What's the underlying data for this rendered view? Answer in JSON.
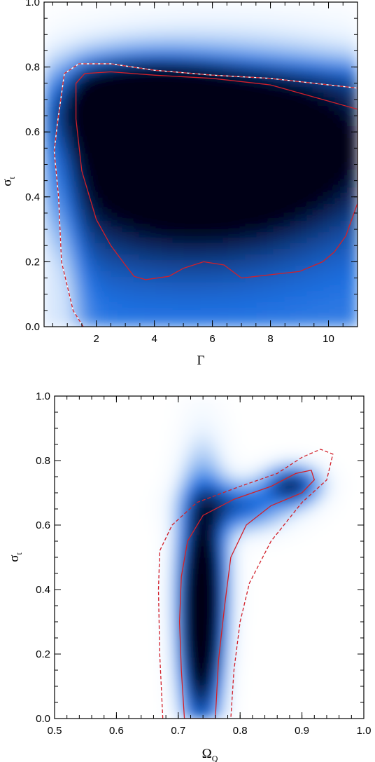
{
  "chart_data": [
    {
      "type": "heatmap",
      "xlabel": "Γ",
      "ylabel": "σ_t",
      "ylabel_main": "σ",
      "ylabel_sub": "t",
      "xlim": [
        0.2,
        11.0
      ],
      "ylim": [
        0.0,
        1.0
      ],
      "xticks": [
        2,
        4,
        6,
        8,
        10
      ],
      "yticks": [
        0.0,
        0.2,
        0.4,
        0.6,
        0.8,
        1.0
      ],
      "xtick_labels": [
        "2",
        "4",
        "6",
        "8",
        "10"
      ],
      "ytick_labels": [
        "0.0",
        "0.2",
        "0.4",
        "0.6",
        "0.8",
        "1.0"
      ],
      "colors": {
        "background": "#ffffff",
        "low": "#e9f3ff",
        "mid": "#1f6fe0",
        "high": "#000018",
        "contour": "#d2202a",
        "contour_outline": "#ffffff"
      },
      "contours": [
        {
          "style": "solid",
          "points": [
            [
              1.6,
              0.78
            ],
            [
              2.5,
              0.785
            ],
            [
              4,
              0.775
            ],
            [
              6,
              0.765
            ],
            [
              8,
              0.745
            ],
            [
              10,
              0.695
            ],
            [
              11,
              0.67
            ],
            [
              11,
              0.38
            ],
            [
              10.6,
              0.28
            ],
            [
              10.2,
              0.23
            ],
            [
              9.8,
              0.2
            ],
            [
              9,
              0.17
            ],
            [
              8,
              0.16
            ],
            [
              7,
              0.15
            ],
            [
              6.4,
              0.19
            ],
            [
              5.7,
              0.2
            ],
            [
              5,
              0.18
            ],
            [
              4.5,
              0.155
            ],
            [
              3.7,
              0.145
            ],
            [
              3.3,
              0.155
            ],
            [
              3,
              0.19
            ],
            [
              2.5,
              0.25
            ],
            [
              2,
              0.33
            ],
            [
              1.5,
              0.48
            ],
            [
              1.3,
              0.64
            ],
            [
              1.3,
              0.75
            ]
          ]
        },
        {
          "style": "dashed",
          "points": [
            [
              1.55,
              0.0
            ],
            [
              1.2,
              0.05
            ],
            [
              0.8,
              0.2
            ],
            [
              0.7,
              0.4
            ],
            [
              0.55,
              0.54
            ],
            [
              0.65,
              0.62
            ],
            [
              0.9,
              0.78
            ],
            [
              1.4,
              0.81
            ],
            [
              2.5,
              0.81
            ],
            [
              4,
              0.79
            ],
            [
              6,
              0.775
            ],
            [
              8,
              0.765
            ],
            [
              10,
              0.745
            ],
            [
              11,
              0.735
            ]
          ]
        }
      ],
      "density_peaks": [
        {
          "x": 3.5,
          "y": 0.68,
          "sx": 2.0,
          "sy": 0.09,
          "w": 1.0
        },
        {
          "x": 7.0,
          "y": 0.58,
          "sx": 3.5,
          "sy": 0.16,
          "w": 0.75
        },
        {
          "x": 5.0,
          "y": 0.45,
          "sx": 3.6,
          "sy": 0.18,
          "w": 0.6
        }
      ]
    },
    {
      "type": "heatmap",
      "xlabel": "Ω_Q",
      "xlabel_main": "Ω",
      "xlabel_sub": "Q",
      "ylabel": "σ_t",
      "ylabel_main": "σ",
      "ylabel_sub": "t",
      "xlim": [
        0.5,
        1.0
      ],
      "ylim": [
        0.0,
        1.0
      ],
      "xticks": [
        0.5,
        0.6,
        0.7,
        0.8,
        0.9,
        1.0
      ],
      "yticks": [
        0.0,
        0.2,
        0.4,
        0.6,
        0.8,
        1.0
      ],
      "xtick_labels": [
        "0.5",
        "0.6",
        "0.7",
        "0.8",
        "0.9",
        "1.0"
      ],
      "ytick_labels": [
        "0.0",
        "0.2",
        "0.4",
        "0.6",
        "0.8",
        "1.0"
      ],
      "colors": {
        "background": "#ffffff",
        "low": "#eef6ff",
        "mid": "#1f6fe0",
        "high": "#000018",
        "contour": "#d2202a"
      },
      "contours": [
        {
          "style": "solid",
          "points": [
            [
              0.71,
              0.0
            ],
            [
              0.705,
              0.15
            ],
            [
              0.702,
              0.3
            ],
            [
              0.705,
              0.44
            ],
            [
              0.715,
              0.55
            ],
            [
              0.74,
              0.63
            ],
            [
              0.79,
              0.68
            ],
            [
              0.85,
              0.72
            ],
            [
              0.89,
              0.76
            ],
            [
              0.915,
              0.77
            ],
            [
              0.92,
              0.74
            ],
            [
              0.9,
              0.7
            ],
            [
              0.85,
              0.66
            ],
            [
              0.81,
              0.6
            ],
            [
              0.785,
              0.5
            ],
            [
              0.775,
              0.35
            ],
            [
              0.765,
              0.18
            ],
            [
              0.76,
              0.0
            ]
          ]
        },
        {
          "style": "dashed",
          "points": [
            [
              0.675,
              0.0
            ],
            [
              0.67,
              0.2
            ],
            [
              0.668,
              0.4
            ],
            [
              0.67,
              0.52
            ],
            [
              0.69,
              0.6
            ],
            [
              0.73,
              0.67
            ],
            [
              0.8,
              0.72
            ],
            [
              0.86,
              0.76
            ],
            [
              0.9,
              0.81
            ],
            [
              0.93,
              0.835
            ],
            [
              0.95,
              0.82
            ],
            [
              0.94,
              0.74
            ],
            [
              0.9,
              0.67
            ],
            [
              0.85,
              0.55
            ],
            [
              0.815,
              0.42
            ],
            [
              0.8,
              0.3
            ],
            [
              0.79,
              0.15
            ],
            [
              0.785,
              0.0
            ]
          ]
        }
      ],
      "density_peaks": [
        {
          "x": 0.74,
          "y": 0.46,
          "sx": 0.025,
          "sy": 0.2,
          "w": 1.0
        },
        {
          "x": 0.737,
          "y": 0.2,
          "sx": 0.022,
          "sy": 0.18,
          "w": 0.85
        },
        {
          "x": 0.8,
          "y": 0.66,
          "sx": 0.05,
          "sy": 0.05,
          "w": 0.55
        },
        {
          "x": 0.885,
          "y": 0.725,
          "sx": 0.03,
          "sy": 0.04,
          "w": 0.75
        }
      ]
    }
  ]
}
